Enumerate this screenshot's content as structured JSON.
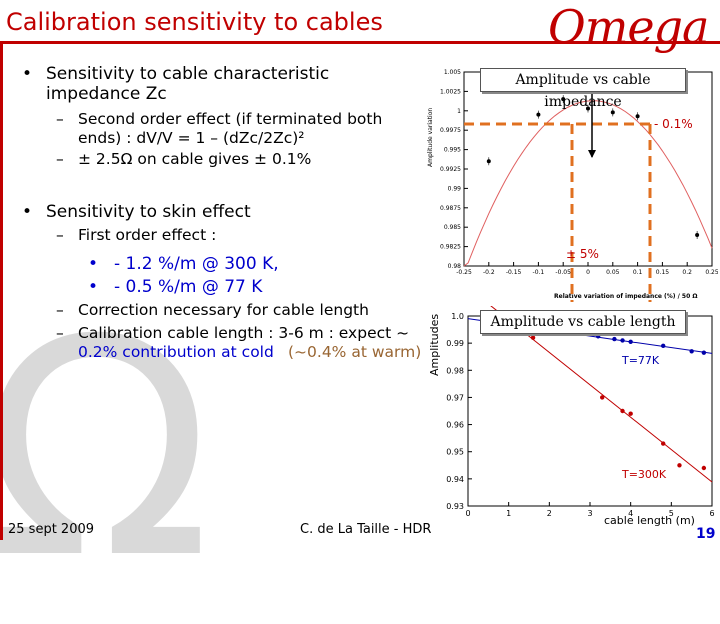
{
  "slide": {
    "title": "Calibration sensitivity to cables",
    "logo": "Omega",
    "footer_date": "25 sept 2009",
    "footer_author": "C. de La Taille - HDR",
    "page_number": "19",
    "watermark": "Ω"
  },
  "bullets": [
    {
      "text": "Sensitivity to cable characteristic impedance Zc",
      "subs": [
        {
          "text": "Second order effect (if terminated both ends) : dV/V = 1 – (dZc/2Zc)²"
        },
        {
          "text": "± 2.5Ω  on cable gives ± 0.1%"
        }
      ]
    },
    {
      "text": "Sensitivity to skin effect",
      "subs": [
        {
          "text": "First order effect :"
        },
        {
          "text": "- 1.2 %/m @ 300 K,"
        },
        {
          "text": "- 0.5 %/m @ 77 K"
        },
        {
          "text": "Correction necessary for cable length"
        },
        {
          "text": "Calibration cable length : 3-6 m : expect ~",
          "text2": "0.2% contribution at cold",
          "text3": "(~0.4% at warm)"
        }
      ]
    }
  ],
  "plot_top": {
    "box_label": "Amplitude vs cable impedance",
    "ylabel": "Amplitude variation",
    "xlabel": "Relative variation of impedance (%) / 50 Ω",
    "yticks": [
      "1.005",
      "1.0025",
      "1",
      "0.9975",
      "0.995",
      "0.9925",
      "0.99",
      "0.9875",
      "0.985",
      "0.9825",
      "0.98"
    ],
    "xticks": [
      "-0.25",
      "-0.2",
      "-0.15",
      "-0.1",
      "-0.05",
      "0",
      "0.05",
      "0.1",
      "0.15",
      "0.2",
      "0.25"
    ],
    "annotation_right": "- 0.1%",
    "annotation_bottom": "± 5%",
    "points": [
      {
        "x": -0.2,
        "y": 0.9935
      },
      {
        "x": -0.1,
        "y": 0.9995
      },
      {
        "x": -0.05,
        "y": 1.0015
      },
      {
        "x": 0.0,
        "y": 1.0003
      },
      {
        "x": 0.05,
        "y": 0.9998
      },
      {
        "x": 0.1,
        "y": 0.9993
      },
      {
        "x": 0.22,
        "y": 0.984
      }
    ]
  },
  "plot_bottom": {
    "box_label": "Amplitude vs cable length",
    "ylabel": "Amplitudes",
    "xlabel": "cable length (m)",
    "yticks": [
      "1.0",
      "0.99",
      "0.98",
      "0.97",
      "0.96",
      "0.95",
      "0.94",
      "0.93"
    ],
    "xticks": [
      "0",
      "1",
      "2",
      "3",
      "4",
      "5",
      "6"
    ],
    "series": [
      {
        "name": "T=77K",
        "color": "#0000aa",
        "points": [
          [
            1.5,
            0.9955
          ],
          [
            3.2,
            0.9925
          ],
          [
            3.6,
            0.9915
          ],
          [
            3.8,
            0.991
          ],
          [
            4.0,
            0.9905
          ],
          [
            4.8,
            0.989
          ],
          [
            5.5,
            0.987
          ],
          [
            5.8,
            0.9865
          ]
        ]
      },
      {
        "name": "T=300K",
        "color": "#c00000",
        "points": [
          [
            1.6,
            0.992
          ],
          [
            3.3,
            0.97
          ],
          [
            3.8,
            0.965
          ],
          [
            4.0,
            0.964
          ],
          [
            4.8,
            0.953
          ],
          [
            5.2,
            0.945
          ],
          [
            5.8,
            0.944
          ]
        ]
      }
    ]
  }
}
